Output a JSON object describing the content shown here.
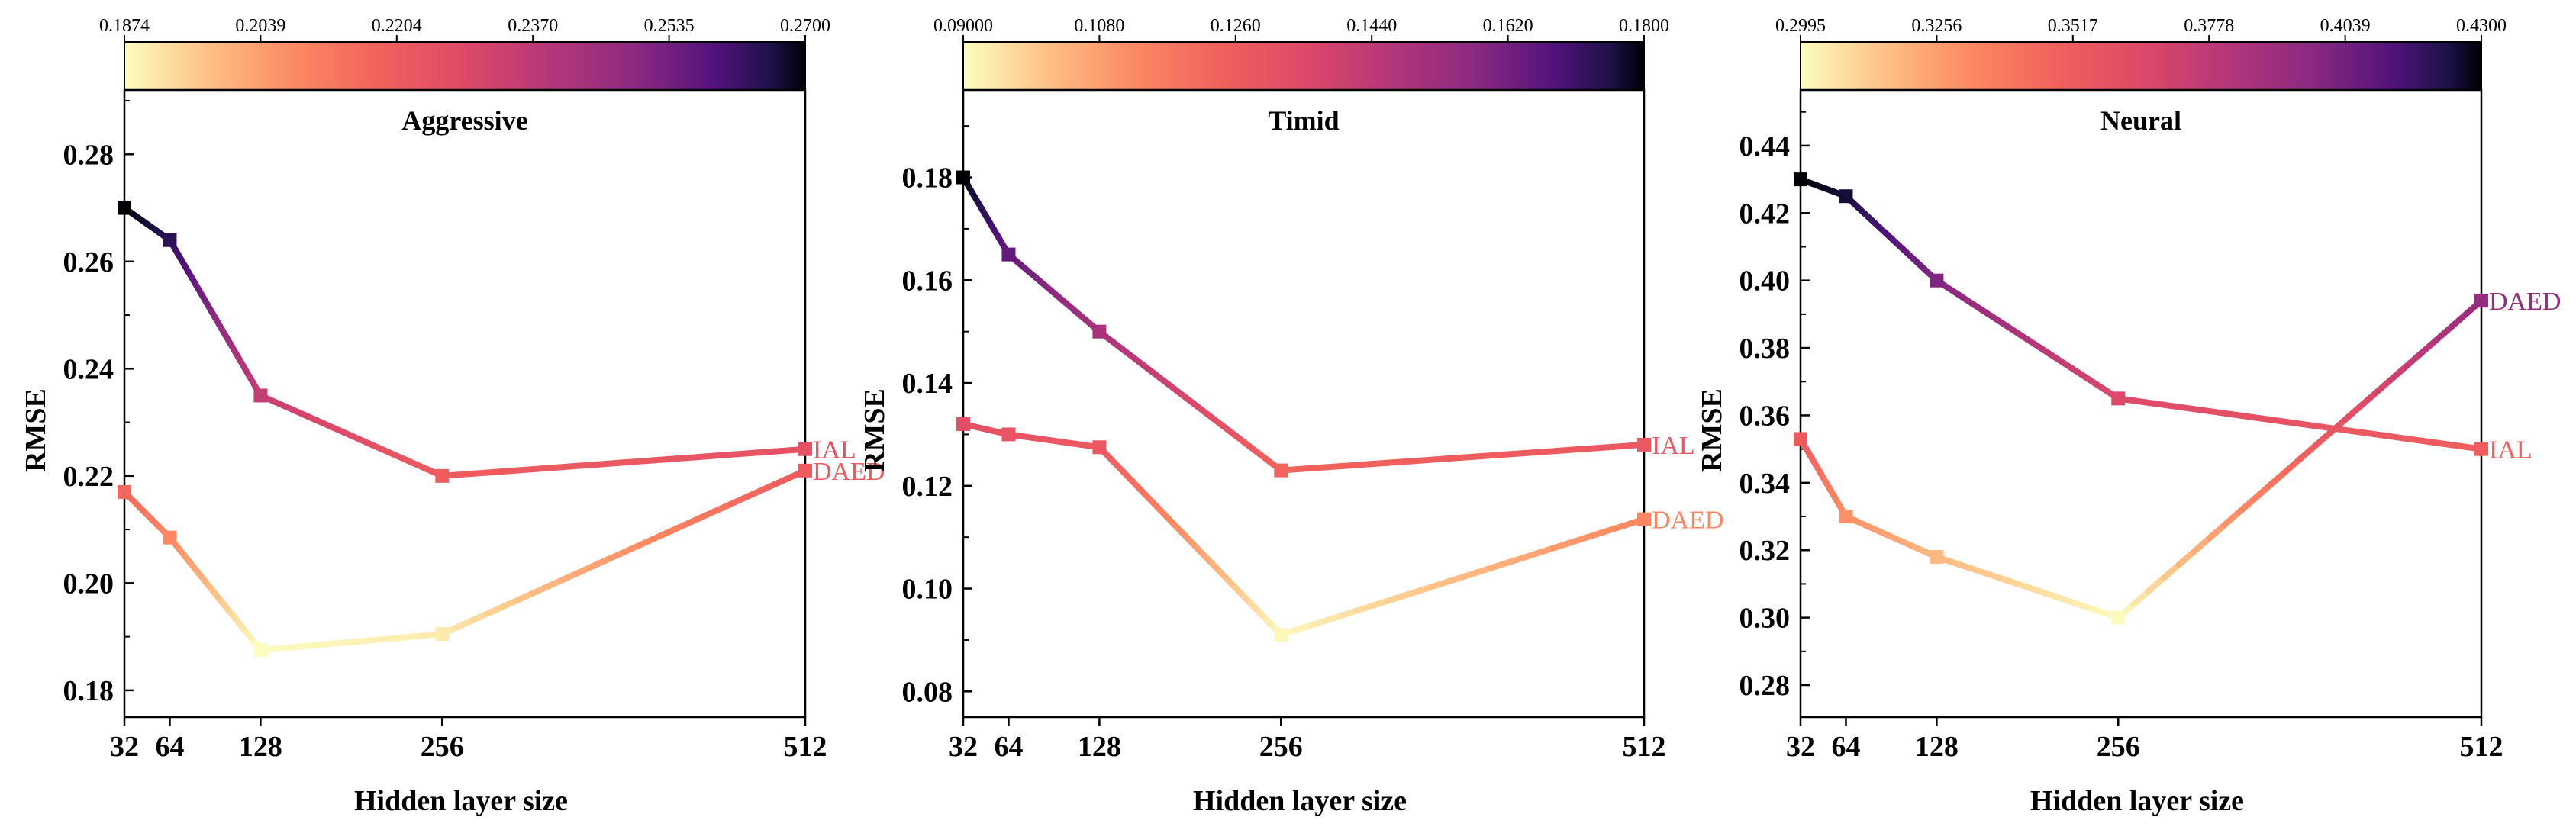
{
  "chart_data": [
    {
      "type": "line",
      "title": "Aggressive",
      "xlabel": "Hidden layer size",
      "ylabel": "RMSE",
      "x": [
        32,
        64,
        128,
        256,
        512
      ],
      "xticks": [
        "32",
        "64",
        "128",
        "256",
        "512"
      ],
      "ylim": [
        0.175,
        0.292
      ],
      "yticks": [
        0.18,
        0.2,
        0.22,
        0.24,
        0.26,
        0.28
      ],
      "ytick_labels": [
        "0.18",
        "0.20",
        "0.22",
        "0.24",
        "0.26",
        "0.28"
      ],
      "colorbar": {
        "min": 0.1874,
        "max": 0.27,
        "tick_labels": [
          "0.1874",
          "0.2039",
          "0.2204",
          "0.2370",
          "0.2535",
          "0.2700"
        ]
      },
      "series": [
        {
          "name": "IAL",
          "values": [
            0.27,
            0.264,
            0.235,
            0.22,
            0.225
          ]
        },
        {
          "name": "DAED",
          "values": [
            0.217,
            0.2085,
            0.1875,
            0.1905,
            0.221
          ]
        }
      ]
    },
    {
      "type": "line",
      "title": "Timid",
      "xlabel": "Hidden layer size",
      "ylabel": "RMSE",
      "x": [
        32,
        64,
        128,
        256,
        512
      ],
      "xticks": [
        "32",
        "64",
        "128",
        "256",
        "512"
      ],
      "ylim": [
        0.075,
        0.197
      ],
      "yticks": [
        0.08,
        0.1,
        0.12,
        0.14,
        0.16,
        0.18
      ],
      "ytick_labels": [
        "0.08",
        "0.10",
        "0.12",
        "0.14",
        "0.16",
        "0.18"
      ],
      "colorbar": {
        "min": 0.09,
        "max": 0.18,
        "tick_labels": [
          "0.09000",
          "0.1080",
          "0.1260",
          "0.1440",
          "0.1620",
          "0.1800"
        ]
      },
      "series": [
        {
          "name": "IAL",
          "values": [
            0.18,
            0.165,
            0.15,
            0.123,
            0.128
          ]
        },
        {
          "name": "DAED",
          "values": [
            0.132,
            0.13,
            0.1275,
            0.091,
            0.1135
          ]
        }
      ]
    },
    {
      "type": "line",
      "title": "Neural",
      "xlabel": "Hidden layer size",
      "ylabel": "RMSE",
      "x": [
        32,
        64,
        128,
        256,
        512
      ],
      "xticks": [
        "32",
        "64",
        "128",
        "256",
        "512"
      ],
      "ylim": [
        0.2705,
        0.4565
      ],
      "yticks": [
        0.28,
        0.3,
        0.32,
        0.34,
        0.36,
        0.38,
        0.4,
        0.42,
        0.44
      ],
      "ytick_labels": [
        "0.28",
        "0.30",
        "0.32",
        "0.34",
        "0.36",
        "0.38",
        "0.40",
        "0.42",
        "0.44"
      ],
      "colorbar": {
        "min": 0.2995,
        "max": 0.43,
        "tick_labels": [
          "0.2995",
          "0.3256",
          "0.3517",
          "0.3778",
          "0.4039",
          "0.4300"
        ]
      },
      "series": [
        {
          "name": "IAL",
          "values": [
            0.43,
            0.425,
            0.4,
            0.365,
            0.35
          ]
        },
        {
          "name": "DAED",
          "values": [
            0.353,
            0.33,
            0.318,
            0.3,
            0.394
          ]
        }
      ]
    }
  ]
}
